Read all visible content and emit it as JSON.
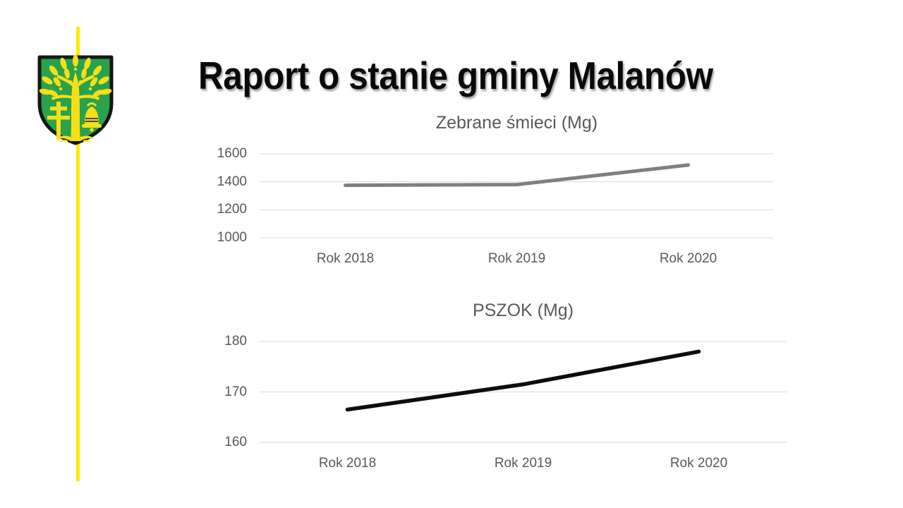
{
  "slide": {
    "title": "Raport o stanie gminy Malanów",
    "background_color": "#FFFFFF",
    "accent_line_color": "#F8EE00"
  },
  "crest": {
    "label": "Herb gminy Malanów",
    "shield_color": "#28A24C",
    "charge_color": "#F6DF1A",
    "outline_color": "#161616"
  },
  "chart_data": [
    {
      "type": "line",
      "title": "Zebrane śmieci (Mg)",
      "categories": [
        "Rok 2018",
        "Rok 2019",
        "Rok 2020"
      ],
      "values": [
        1375,
        1380,
        1520
      ],
      "ylim": [
        1000,
        1600
      ],
      "yticks": [
        1000,
        1200,
        1400,
        1600
      ],
      "grid": true,
      "legend": "none",
      "line_color": "#7F7F7F",
      "grid_color": "#D9D9D9",
      "label_color": "#595959"
    },
    {
      "type": "line",
      "title": "PSZOK (Mg)",
      "categories": [
        "Rok 2018",
        "Rok 2019",
        "Rok 2020"
      ],
      "values": [
        166.5,
        171.5,
        178
      ],
      "ylim": [
        160,
        180
      ],
      "yticks": [
        160,
        170,
        180
      ],
      "grid": true,
      "legend": "none",
      "line_color": "#0D0D0D",
      "grid_color": "#D9D9D9",
      "label_color": "#595959"
    }
  ]
}
